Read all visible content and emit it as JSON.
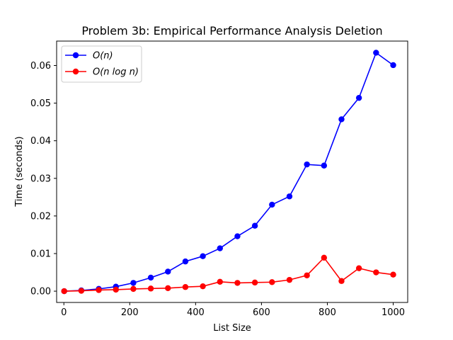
{
  "chart_data": {
    "type": "line",
    "title": "Problem 3b: Empirical Performance Analysis Deletion",
    "xlabel": "List Size",
    "ylabel": "Time (seconds)",
    "xlim": [
      -22,
      1044
    ],
    "ylim": [
      -0.003,
      0.0665
    ],
    "xticks": [
      0,
      200,
      400,
      600,
      800,
      1000
    ],
    "xtick_labels": [
      "0",
      "200",
      "400",
      "600",
      "800",
      "1000"
    ],
    "yticks": [
      0.0,
      0.01,
      0.02,
      0.03,
      0.04,
      0.05,
      0.06
    ],
    "ytick_labels": [
      "0.00",
      "0.01",
      "0.02",
      "0.03",
      "0.04",
      "0.05",
      "0.06"
    ],
    "grid": false,
    "legend_position": "top-left",
    "x": [
      1,
      53,
      106,
      158,
      211,
      264,
      316,
      369,
      422,
      474,
      527,
      580,
      632,
      685,
      738,
      790,
      843,
      896,
      948,
      1000
    ],
    "series": [
      {
        "name": "O(n)",
        "legend_main": "O",
        "legend_arg": "(n)",
        "color": "#0000ff",
        "values": [
          0.0,
          0.0002,
          0.0006,
          0.0012,
          0.0022,
          0.0036,
          0.0052,
          0.0079,
          0.0093,
          0.0114,
          0.0146,
          0.0174,
          0.023,
          0.0252,
          0.0337,
          0.0334,
          0.0457,
          0.0514,
          0.0634,
          0.0601
        ]
      },
      {
        "name": "O(n log n)",
        "legend_main": "O",
        "legend_arg": "(n log n)",
        "color": "#ff0000",
        "values": [
          0.0,
          0.0001,
          0.0003,
          0.0004,
          0.0006,
          0.0007,
          0.0008,
          0.0011,
          0.0013,
          0.0025,
          0.0022,
          0.0023,
          0.0024,
          0.003,
          0.0042,
          0.0089,
          0.0027,
          0.0061,
          0.005,
          0.0044
        ]
      }
    ]
  }
}
